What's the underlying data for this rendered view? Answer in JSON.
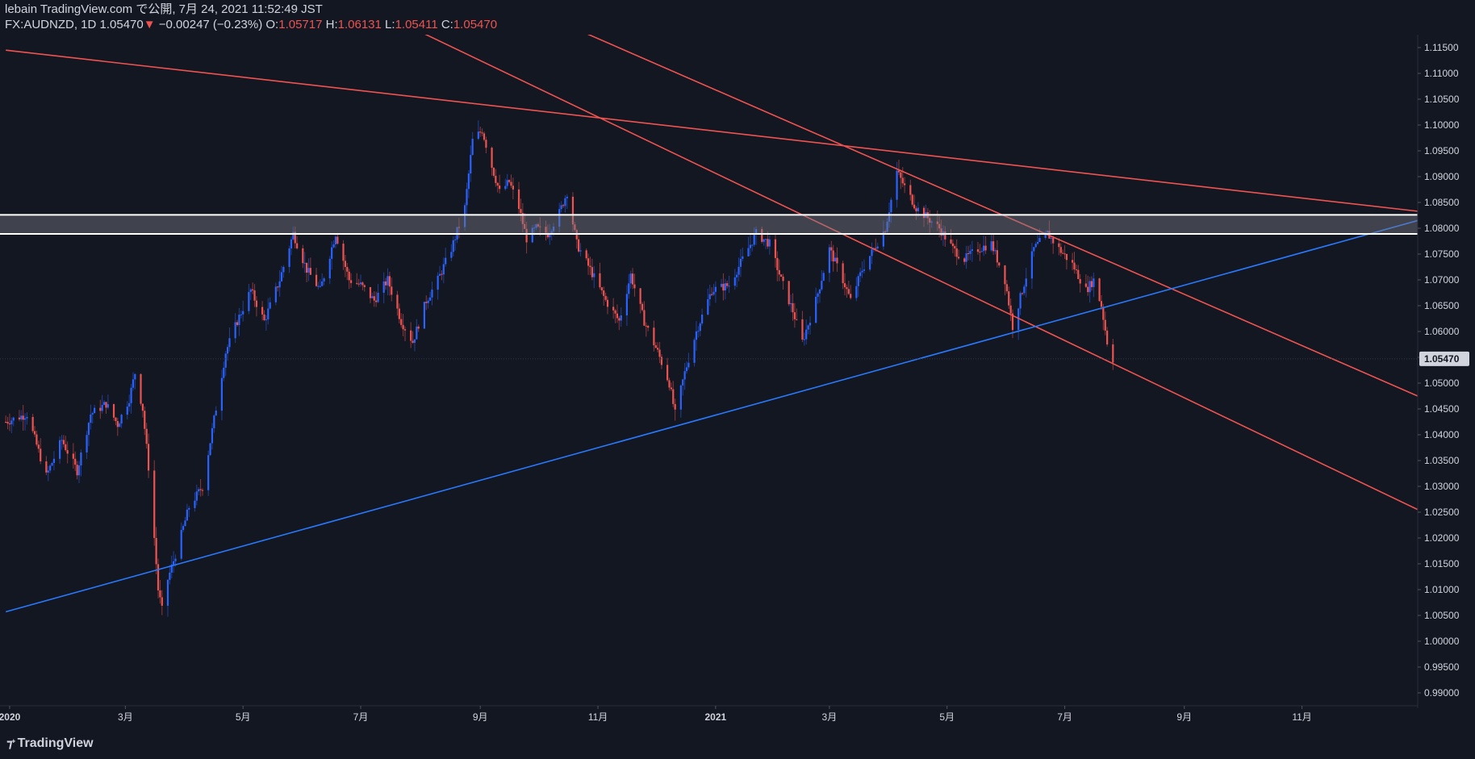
{
  "header": {
    "publisher": "lebain TradingView.com で公開, 7月 24, 2021 11:52:49 JST",
    "symbol": "FX:AUDNZD, 1D",
    "last": "1.05470",
    "arrow": "▼",
    "change": "−0.00247 (−0.23%)",
    "o_label": "O:",
    "o_value": "1.05717",
    "h_label": "H:",
    "h_value": "1.06131",
    "l_label": "L:",
    "l_value": "1.05411",
    "c_label": "C:",
    "c_value": "1.05470"
  },
  "branding": {
    "logo_icon": "tradingview-logo-icon",
    "name": "TradingView"
  },
  "colors": {
    "background": "#131722",
    "up": "#2962ff",
    "down": "#ef5350",
    "trend_red": "#f05350",
    "trend_blue": "#2979ff",
    "zone_fill": "#787b86",
    "axis_text": "#d1d4dc",
    "last_label_bg": "#d1d4dc"
  },
  "chart_data": {
    "type": "candlestick",
    "title": "",
    "xlabel": "",
    "ylabel": "",
    "grid": false,
    "ylim": [
      0.9875,
      1.1175
    ],
    "xlim": [
      "2019-12-27",
      "2021-12-31"
    ],
    "y_ticks": [
      "0.99000",
      "0.99500",
      "1.00000",
      "1.00500",
      "1.01000",
      "1.01500",
      "1.02000",
      "1.02500",
      "1.03000",
      "1.03500",
      "1.04000",
      "1.04500",
      "1.05000",
      "1.05500",
      "1.06000",
      "1.06500",
      "1.07000",
      "1.07500",
      "1.08000",
      "1.08500",
      "1.09000",
      "1.09500",
      "1.10000",
      "1.10500",
      "1.11000",
      "1.11500"
    ],
    "x_ticks": [
      {
        "label": "2020",
        "date": "2020-01-01"
      },
      {
        "label": "3月",
        "date": "2020-03-01"
      },
      {
        "label": "5月",
        "date": "2020-05-01"
      },
      {
        "label": "7月",
        "date": "2020-07-01"
      },
      {
        "label": "9月",
        "date": "2020-09-01"
      },
      {
        "label": "11月",
        "date": "2020-11-01"
      },
      {
        "label": "2021",
        "date": "2021-01-01"
      },
      {
        "label": "3月",
        "date": "2021-03-01"
      },
      {
        "label": "5月",
        "date": "2021-05-01"
      },
      {
        "label": "7月",
        "date": "2021-07-01"
      },
      {
        "label": "9月",
        "date": "2021-09-01"
      },
      {
        "label": "11月",
        "date": "2021-11-01"
      }
    ],
    "last_price": "1.05470",
    "price_path": [
      [
        "2019-12-30",
        1.0425
      ],
      [
        "2020-01-10",
        1.044
      ],
      [
        "2020-01-20",
        1.032
      ],
      [
        "2020-01-28",
        1.039
      ],
      [
        "2020-02-05",
        1.033
      ],
      [
        "2020-02-12",
        1.044
      ],
      [
        "2020-02-20",
        1.046
      ],
      [
        "2020-02-26",
        1.042
      ],
      [
        "2020-03-03",
        1.047
      ],
      [
        "2020-03-06",
        1.052
      ],
      [
        "2020-03-10",
        1.045
      ],
      [
        "2020-03-14",
        1.03
      ],
      [
        "2020-03-18",
        1.01
      ],
      [
        "2020-03-20",
        1.006
      ],
      [
        "2020-03-23",
        1.012
      ],
      [
        "2020-03-28",
        1.018
      ],
      [
        "2020-04-03",
        1.026
      ],
      [
        "2020-04-10",
        1.03
      ],
      [
        "2020-04-16",
        1.043
      ],
      [
        "2020-04-22",
        1.056
      ],
      [
        "2020-04-28",
        1.062
      ],
      [
        "2020-05-05",
        1.068
      ],
      [
        "2020-05-12",
        1.062
      ],
      [
        "2020-05-20",
        1.07
      ],
      [
        "2020-05-27",
        1.079
      ],
      [
        "2020-06-03",
        1.072
      ],
      [
        "2020-06-10",
        1.068
      ],
      [
        "2020-06-18",
        1.079
      ],
      [
        "2020-06-25",
        1.07
      ],
      [
        "2020-07-01",
        1.069
      ],
      [
        "2020-07-08",
        1.066
      ],
      [
        "2020-07-15",
        1.07
      ],
      [
        "2020-07-22",
        1.062
      ],
      [
        "2020-07-28",
        1.058
      ],
      [
        "2020-08-04",
        1.066
      ],
      [
        "2020-08-10",
        1.07
      ],
      [
        "2020-08-17",
        1.076
      ],
      [
        "2020-08-24",
        1.084
      ],
      [
        "2020-08-28",
        1.097
      ],
      [
        "2020-09-02",
        1.099
      ],
      [
        "2020-09-07",
        1.092
      ],
      [
        "2020-09-11",
        1.087
      ],
      [
        "2020-09-16",
        1.089
      ],
      [
        "2020-09-21",
        1.084
      ],
      [
        "2020-09-25",
        1.078
      ],
      [
        "2020-09-30",
        1.08
      ],
      [
        "2020-10-06",
        1.079
      ],
      [
        "2020-10-12",
        1.083
      ],
      [
        "2020-10-16",
        1.087
      ],
      [
        "2020-10-21",
        1.077
      ],
      [
        "2020-10-28",
        1.072
      ],
      [
        "2020-11-05",
        1.066
      ],
      [
        "2020-11-12",
        1.062
      ],
      [
        "2020-11-18",
        1.071
      ],
      [
        "2020-11-25",
        1.062
      ],
      [
        "2020-12-02",
        1.056
      ],
      [
        "2020-12-08",
        1.05
      ],
      [
        "2020-12-11",
        1.044
      ],
      [
        "2020-12-16",
        1.052
      ],
      [
        "2020-12-22",
        1.06
      ],
      [
        "2020-12-30",
        1.068
      ],
      [
        "2021-01-08",
        1.069
      ],
      [
        "2021-01-15",
        1.074
      ],
      [
        "2021-01-22",
        1.079
      ],
      [
        "2021-01-29",
        1.077
      ],
      [
        "2021-02-04",
        1.07
      ],
      [
        "2021-02-10",
        1.064
      ],
      [
        "2021-02-15",
        1.058
      ],
      [
        "2021-02-22",
        1.066
      ],
      [
        "2021-03-01",
        1.076
      ],
      [
        "2021-03-08",
        1.07
      ],
      [
        "2021-03-12",
        1.066
      ],
      [
        "2021-03-18",
        1.072
      ],
      [
        "2021-03-24",
        1.076
      ],
      [
        "2021-03-30",
        1.08
      ],
      [
        "2021-04-05",
        1.091
      ],
      [
        "2021-04-09",
        1.088
      ],
      [
        "2021-04-15",
        1.084
      ],
      [
        "2021-04-21",
        1.082
      ],
      [
        "2021-04-27",
        1.08
      ],
      [
        "2021-05-04",
        1.076
      ],
      [
        "2021-05-10",
        1.074
      ],
      [
        "2021-05-17",
        1.076
      ],
      [
        "2021-05-24",
        1.077
      ],
      [
        "2021-05-31",
        1.07
      ],
      [
        "2021-06-04",
        1.061
      ],
      [
        "2021-06-09",
        1.068
      ],
      [
        "2021-06-15",
        1.076
      ],
      [
        "2021-06-22",
        1.079
      ],
      [
        "2021-06-28",
        1.076
      ],
      [
        "2021-07-05",
        1.073
      ],
      [
        "2021-07-12",
        1.068
      ],
      [
        "2021-07-16",
        1.07
      ],
      [
        "2021-07-20",
        1.065
      ],
      [
        "2021-07-23",
        1.058
      ],
      [
        "2021-07-26",
        1.0547
      ]
    ],
    "drawings": [
      {
        "kind": "trendline",
        "color": "red",
        "points": [
          [
            "2019-12-30",
            1.1145
          ],
          [
            "2021-12-31",
            1.0833
          ]
        ]
      },
      {
        "kind": "trendline",
        "color": "red",
        "points": [
          [
            "2020-07-21",
            1.12
          ],
          [
            "2021-12-31",
            1.0255
          ]
        ]
      },
      {
        "kind": "trendline",
        "color": "red",
        "points": [
          [
            "2020-10-12",
            1.12
          ],
          [
            "2021-12-31",
            1.0475
          ]
        ]
      },
      {
        "kind": "trendline",
        "color": "blue",
        "points": [
          [
            "2019-12-30",
            1.0057
          ],
          [
            "2021-12-31",
            1.0815
          ]
        ]
      },
      {
        "kind": "zone",
        "from": 1.0789,
        "to": 1.0826
      }
    ]
  }
}
